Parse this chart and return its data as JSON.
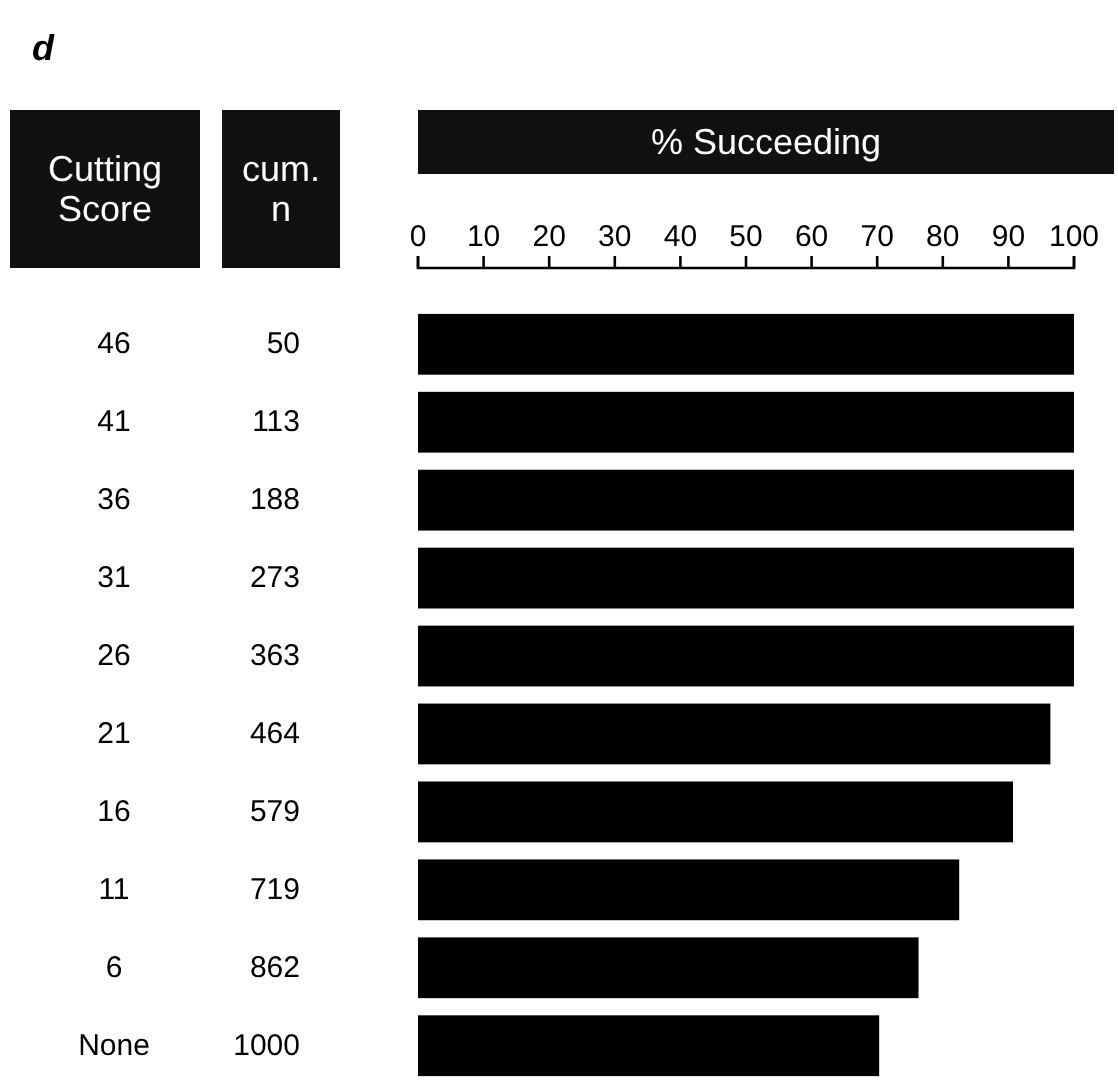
{
  "chart_data": {
    "type": "bar",
    "orientation": "horizontal",
    "title": "d",
    "x2label": "% Succeeding",
    "ylabel": "Cutting Score",
    "categories": [
      "46",
      "41",
      "36",
      "31",
      "26",
      "21",
      "16",
      "11",
      "6",
      "None"
    ],
    "series": [
      {
        "color": "#000000",
        "axis": "x2",
        "values": [
          100,
          100,
          100,
          100,
          100,
          96.4,
          90.7,
          82.5,
          76.3,
          70.3
        ]
      }
    ],
    "x2lim": [
      0,
      100
    ],
    "x2ticks": [
      0,
      10,
      20,
      30,
      40,
      50,
      60,
      70,
      80,
      90,
      100
    ],
    "annotations": [
      "cum. n",
      "50",
      "113",
      "188",
      "273",
      "363",
      "464",
      "579",
      "719",
      "862",
      "1000"
    ]
  }
}
